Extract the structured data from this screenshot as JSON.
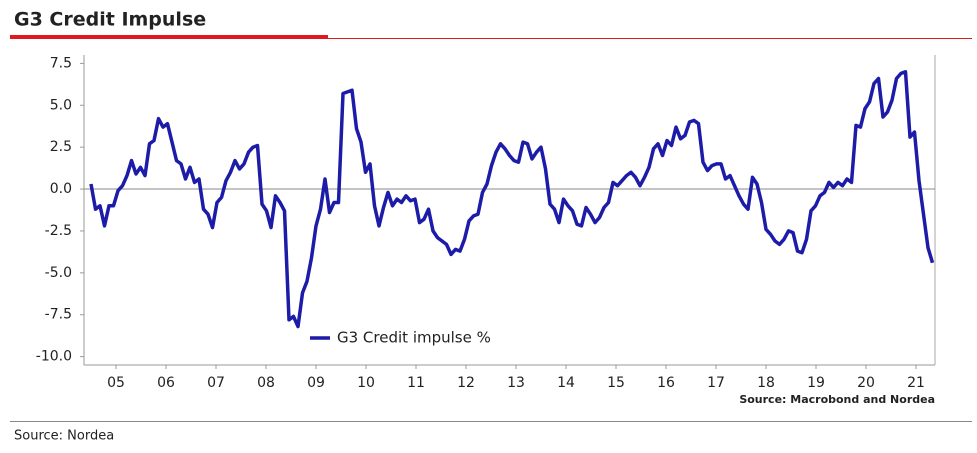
{
  "chart_data": {
    "type": "line",
    "title": "G3 Credit Impulse",
    "source_note": "Source: Macrobond and Nordea",
    "x": [
      5,
      5.09,
      5.18,
      5.27,
      5.36,
      5.45,
      5.54,
      5.63,
      5.72,
      5.81,
      5.9,
      5.99,
      6.08,
      6.17,
      6.26,
      6.35,
      6.44,
      6.53,
      6.62,
      6.71,
      6.8,
      6.89,
      6.98,
      7.07,
      7.16,
      7.25,
      7.34,
      7.43,
      7.52,
      7.61,
      7.7,
      7.79,
      7.88,
      7.97,
      8.06,
      8.15,
      8.24,
      8.33,
      8.42,
      8.51,
      8.6,
      8.69,
      8.78,
      8.87,
      8.96,
      9.05,
      9.14,
      9.23,
      9.32,
      9.41,
      9.5,
      9.59,
      9.68,
      9.77,
      9.86,
      9.95,
      10.04,
      10.13,
      10.22,
      10.31,
      10.4,
      10.49,
      10.58,
      10.67,
      10.76,
      10.85,
      10.94,
      11.03,
      11.12,
      11.21,
      11.3,
      11.39,
      11.48,
      11.57,
      11.66,
      11.75,
      11.84,
      11.93,
      12.02,
      12.11,
      12.2,
      12.29,
      12.38,
      12.47,
      12.56,
      12.65,
      12.74,
      12.83,
      12.92,
      13.01,
      13.1,
      13.19,
      13.28,
      13.37,
      13.46,
      13.55,
      13.64,
      13.73,
      13.82,
      13.91,
      14,
      14.09,
      14.18,
      14.27,
      14.36,
      14.45,
      14.54,
      14.63,
      14.72,
      14.81,
      14.9,
      14.99,
      15.08,
      15.17,
      15.26,
      15.35,
      15.44,
      15.53,
      15.62,
      15.71,
      15.8,
      15.89,
      15.98,
      16.07,
      16.16,
      16.25,
      16.34,
      16.43,
      16.52,
      16.61,
      16.7,
      16.79,
      16.88,
      16.97,
      17.06,
      17.15,
      17.24,
      17.33,
      17.42,
      17.51,
      17.6,
      17.69,
      17.78,
      17.87,
      17.96,
      18.05,
      18.14,
      18.23,
      18.32,
      18.41,
      18.5,
      18.59,
      18.68,
      18.77,
      18.86,
      18.95,
      19.04,
      19.13,
      19.22,
      19.31,
      19.4,
      19.49,
      19.58,
      19.67,
      19.76,
      19.85,
      19.94,
      20.03,
      20.12,
      20.21,
      20.3,
      20.39,
      20.48,
      20.57,
      20.66,
      20.75,
      20.84,
      20.93,
      21.02,
      21.11,
      21.2,
      21.29,
      21.38,
      21.47,
      21.56,
      21.65,
      21.74,
      21.83
    ],
    "series": [
      {
        "name": "G3 Credit impulse %",
        "color": "#1c1ca8",
        "values": [
          0.3,
          -1.2,
          -1.0,
          -2.2,
          -1.0,
          -1.0,
          -0.1,
          0.2,
          0.8,
          1.7,
          0.9,
          1.3,
          0.8,
          2.7,
          2.9,
          4.2,
          3.7,
          3.9,
          2.8,
          1.7,
          1.5,
          0.6,
          1.3,
          0.4,
          0.6,
          -1.2,
          -1.5,
          -2.3,
          -0.8,
          -0.5,
          0.5,
          1.0,
          1.7,
          1.2,
          1.5,
          2.2,
          2.5,
          2.6,
          -0.9,
          -1.3,
          -2.3,
          -0.4,
          -0.8,
          -1.3,
          -7.8,
          -7.6,
          -8.2,
          -6.2,
          -5.5,
          -4.1,
          -2.2,
          -1.2,
          0.6,
          -1.4,
          -0.8,
          -0.8,
          5.7,
          5.8,
          5.9,
          3.6,
          2.8,
          1.0,
          1.5,
          -1.0,
          -2.2,
          -1.1,
          -0.2,
          -1.0,
          -0.6,
          -0.8,
          -0.4,
          -0.7,
          -0.6,
          -2.0,
          -1.8,
          -1.2,
          -2.5,
          -2.9,
          -3.1,
          -3.3,
          -3.9,
          -3.6,
          -3.7,
          -3.0,
          -1.9,
          -1.6,
          -1.5,
          -0.2,
          0.3,
          1.4,
          2.2,
          2.7,
          2.4,
          2.0,
          1.7,
          1.6,
          2.8,
          2.7,
          1.8,
          2.2,
          2.5,
          1.2,
          -0.9,
          -1.2,
          -2.0,
          -0.6,
          -1.0,
          -1.3,
          -2.1,
          -2.2,
          -1.1,
          -1.5,
          -2.0,
          -1.7,
          -1.1,
          -0.8,
          0.4,
          0.2,
          0.5,
          0.8,
          1.0,
          0.7,
          0.2,
          0.7,
          1.3,
          2.4,
          2.7,
          2.0,
          2.9,
          2.6,
          3.7,
          3.0,
          3.2,
          4.0,
          4.1,
          3.9,
          1.6,
          1.1,
          1.4,
          1.5,
          1.5,
          0.6,
          0.8,
          0.2,
          -0.4,
          -0.9,
          -1.2,
          0.7,
          0.3,
          -0.8,
          -2.4,
          -2.7,
          -3.1,
          -3.3,
          -3.0,
          -2.5,
          -2.6,
          -3.7,
          -3.8,
          -3.0,
          -1.3,
          -1.0,
          -0.4,
          -0.2,
          0.4,
          0.1,
          0.4,
          0.2,
          0.6,
          0.4,
          3.8,
          3.7,
          4.8,
          5.2,
          6.3,
          6.6,
          4.3,
          4.6,
          5.3,
          6.6,
          6.9,
          7.0,
          3.1,
          3.4,
          0.5,
          -1.5,
          -3.5,
          -4.4
        ]
      }
    ],
    "xlim": [
      4.86,
      21.88
    ],
    "xticks": [
      {
        "value": 5.5,
        "label": "05"
      },
      {
        "value": 6.5,
        "label": "06"
      },
      {
        "value": 7.5,
        "label": "07"
      },
      {
        "value": 8.5,
        "label": "08"
      },
      {
        "value": 9.5,
        "label": "09"
      },
      {
        "value": 10.5,
        "label": "10"
      },
      {
        "value": 11.5,
        "label": "11"
      },
      {
        "value": 12.5,
        "label": "12"
      },
      {
        "value": 13.5,
        "label": "13"
      },
      {
        "value": 14.5,
        "label": "14"
      },
      {
        "value": 15.5,
        "label": "15"
      },
      {
        "value": 16.5,
        "label": "16"
      },
      {
        "value": 17.5,
        "label": "17"
      },
      {
        "value": 18.5,
        "label": "18"
      },
      {
        "value": 19.5,
        "label": "19"
      },
      {
        "value": 20.5,
        "label": "20"
      },
      {
        "value": 21.5,
        "label": "21"
      }
    ],
    "ylim": [
      -10.5,
      8.0
    ],
    "yticks": [
      7.5,
      {
        "value": 5,
        "label": "5.0"
      },
      2.5,
      {
        "value": 0,
        "label": "0.0"
      },
      -2.5,
      {
        "value": -5,
        "label": "-5.0"
      },
      -7.5,
      {
        "value": -10,
        "label": "-10.0"
      }
    ],
    "legend": "lower-center"
  },
  "footer": "Source: Nordea"
}
